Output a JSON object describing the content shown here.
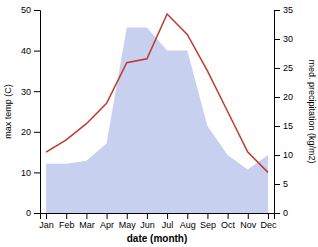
{
  "chart_data": {
    "type": "line",
    "xlabel": "date (month)",
    "ylabel": "max temp (C)",
    "y2label": "med. precipitation (kg/m2)",
    "categories": [
      "Jan",
      "Feb",
      "Mar",
      "Apr",
      "May",
      "Jun",
      "Jul",
      "Aug",
      "Sep",
      "Oct",
      "Nov",
      "Dec"
    ],
    "series": [
      {
        "type": "area",
        "axis": "y2",
        "color": "#c8d0f0",
        "values": [
          8.5,
          8.5,
          9,
          12,
          32,
          32,
          28,
          28,
          15,
          10,
          7.5,
          10
        ]
      },
      {
        "type": "line",
        "color": "#c0392b",
        "values": [
          15,
          18,
          22,
          27,
          37,
          38,
          49,
          44,
          35,
          25,
          15,
          10
        ]
      }
    ],
    "ylim": [
      0,
      50
    ],
    "yticks": [
      0,
      10,
      20,
      30,
      40,
      50
    ],
    "y2lim": [
      0,
      35
    ],
    "y2ticks": [
      0,
      5,
      10,
      15,
      20,
      25,
      30,
      35
    ],
    "grid": false
  }
}
